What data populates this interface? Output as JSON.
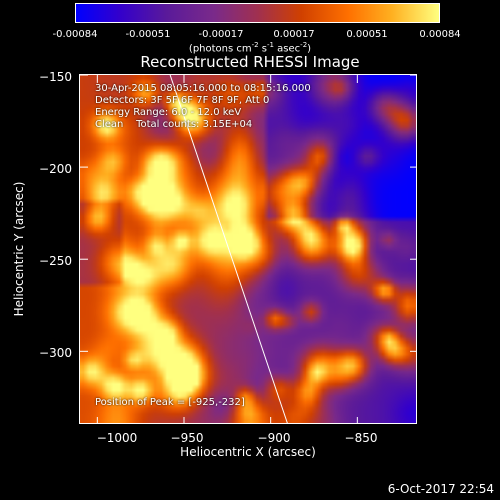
{
  "colorbar": {
    "ticks": [
      "-0.00084",
      "-0.00051",
      "-0.00017",
      "0.00017",
      "0.00051",
      "0.00084"
    ],
    "unit_base": "(photons cm",
    "unit_exp1": "-2",
    "unit_mid1": " s",
    "unit_exp2": "-1",
    "unit_mid2": " asec",
    "unit_exp3": "-2",
    "unit_end": ")"
  },
  "chart_data": {
    "type": "heatmap",
    "title": "Reconstructed RHESSI Image",
    "xlabel": "Heliocentric X (arcsec)",
    "ylabel": "Heliocentric Y (arcsec)",
    "xlim": [
      -1010,
      -815
    ],
    "ylim": [
      -340,
      -150
    ],
    "xticks": [
      -1000,
      -950,
      -900,
      -850
    ],
    "xtick_labels": [
      "−1000",
      "−950",
      "−900",
      "−850"
    ],
    "yticks": [
      -150,
      -200,
      -250,
      -300
    ],
    "ytick_labels": [
      "−150",
      "−200",
      "−250",
      "−300"
    ],
    "info_lines": [
      "30-Apr-2015 08:05:16.000 to 08:15:16.000",
      "Detectors: 3F 5F 6F 7F 8F 9F, Att 0",
      "Energy Range: 6.0 - 12.0 keV",
      "Clean    Total counts: 3.15E+04"
    ],
    "peak_label": "Position of Peak = [-925,-232]",
    "peak": [
      -925,
      -232
    ],
    "value_range": [
      -0.00084,
      0.00084
    ],
    "limb_line": [
      [
        -958,
        -150
      ],
      [
        -890,
        -340
      ]
    ]
  },
  "timestamp": "6-Oct-2017 22:54"
}
